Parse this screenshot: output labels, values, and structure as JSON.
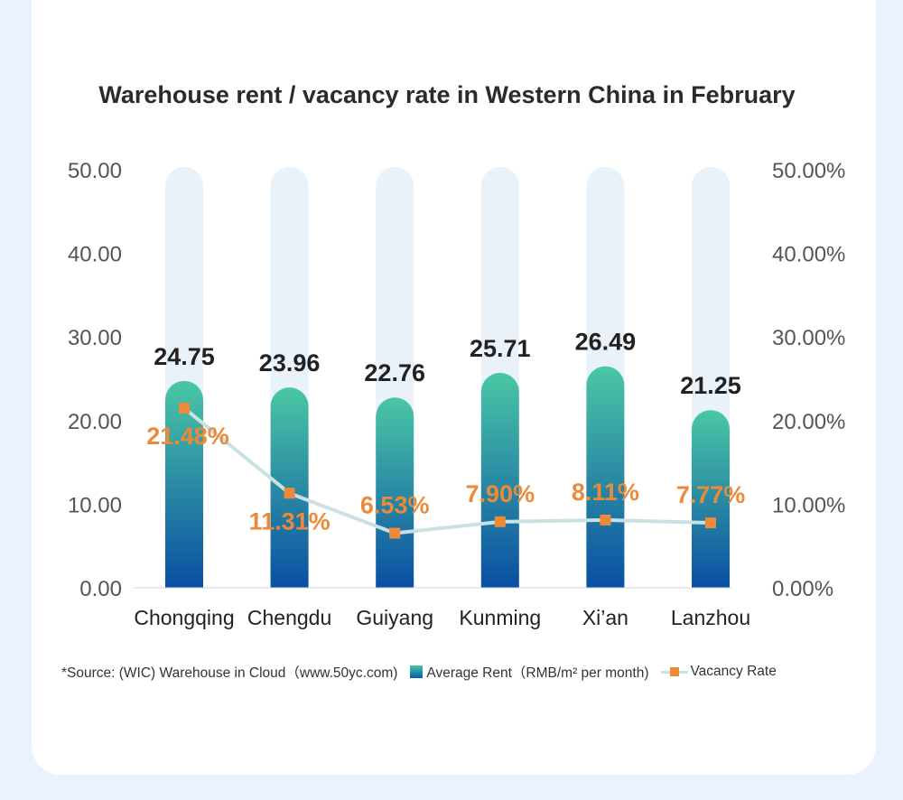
{
  "chart_data": {
    "type": "bar",
    "title": "Warehouse rent / vacancy rate in Western China in February",
    "categories": [
      "Chongqing",
      "Chengdu",
      "Guiyang",
      "Kunming",
      "Xi’an",
      "Lanzhou"
    ],
    "series": [
      {
        "name": "Average Rent（RMB/m² per month)",
        "type": "bar",
        "axis": "left",
        "values": [
          24.75,
          23.96,
          22.76,
          25.71,
          26.49,
          21.25
        ],
        "labels": [
          "24.75",
          "23.96",
          "22.76",
          "25.71",
          "26.49",
          "21.25"
        ]
      },
      {
        "name": "Vacancy Rate",
        "type": "line",
        "axis": "right",
        "values": [
          21.48,
          11.31,
          6.53,
          7.9,
          8.11,
          7.77
        ],
        "labels": [
          "21.48%",
          "11.31%",
          "6.53%",
          "7.90%",
          "8.11%",
          "7.77%"
        ]
      }
    ],
    "y_left": {
      "range": [
        0,
        50
      ],
      "ticks": [
        "0.00",
        "10.00",
        "20.00",
        "30.00",
        "40.00",
        "50.00"
      ]
    },
    "y_right": {
      "range": [
        0,
        50
      ],
      "ticks": [
        "0.00%",
        "10.00%",
        "20.00%",
        "30.00%",
        "40.00%",
        "50.00%"
      ]
    },
    "grid": false,
    "legend_position": "bottom",
    "colors": {
      "bar_top": "#4ac7a4",
      "bar_bottom": "#0a4fa3",
      "bar_track": "#e8f2f8",
      "line": "#c9e1e3",
      "marker": "#ec8a3a",
      "vacancy_label": "#ec8a3a",
      "rent_label": "#222222",
      "tick": "#555555",
      "background": "#e9f3fd"
    }
  },
  "legend": {
    "source": "*Source: (WIC) Warehouse in Cloud（www.50yc.com)",
    "rent": "Average Rent（RMB/m² per month)",
    "vacancy": "Vacancy Rate"
  }
}
